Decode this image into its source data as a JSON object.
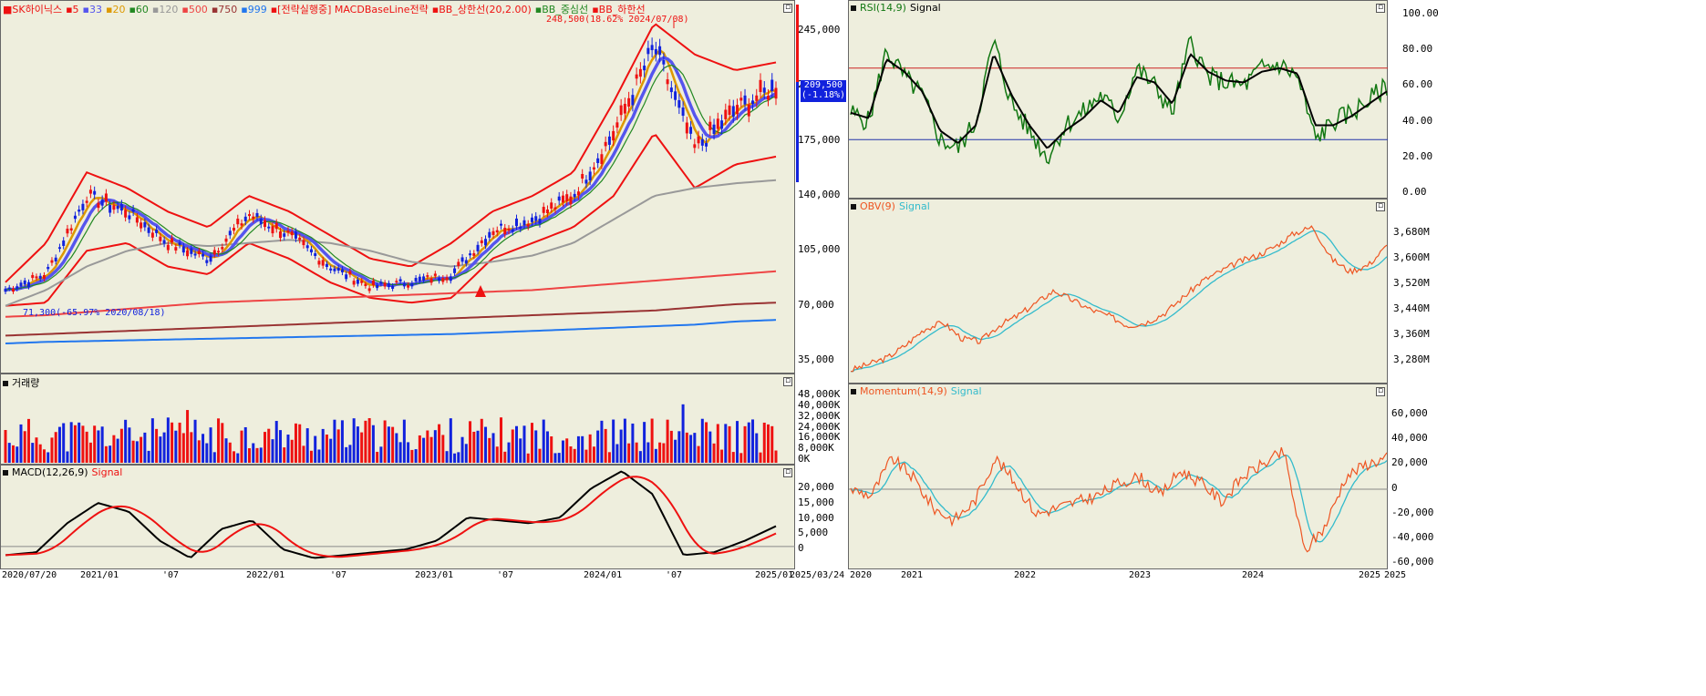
{
  "colors": {
    "bg": "#eeeedd",
    "up": "#ee1111",
    "down": "#1122dd",
    "ma5": "#ee1111",
    "ma20": "#dd9900",
    "ma33": "#5555ee",
    "ma60": "#228822",
    "ma120": "#999999",
    "ma500": "#ee4444",
    "ma750": "#993333",
    "ma999": "#2277ee",
    "bb": "#ee1111",
    "rsi": "#117711",
    "signal": "#000000",
    "obv": "#ee5522",
    "obv_signal": "#33bbcc",
    "macd": "#000000",
    "macd_signal": "#ee1111"
  },
  "price_panel": {
    "legend": [
      {
        "text": "SK하이닉스",
        "color": "#ee1111"
      },
      {
        "text": "5",
        "color": "#ee1111"
      },
      {
        "text": "33",
        "color": "#5555ee"
      },
      {
        "text": "20",
        "color": "#dd9900"
      },
      {
        "text": "60",
        "color": "#228822"
      },
      {
        "text": "120",
        "color": "#999999"
      },
      {
        "text": "500",
        "color": "#ee4444"
      },
      {
        "text": "750",
        "color": "#993333"
      },
      {
        "text": "999",
        "color": "#2277ee"
      },
      {
        "text": "[전략실행중] MACDBaseLine전략",
        "color": "#ee1111"
      },
      {
        "text": "BB_상한선(20,2.00)",
        "color": "#ee1111"
      },
      {
        "text": "BB_중심선",
        "color": "#228822"
      },
      {
        "text": "BB_하한선",
        "color": "#ee1111"
      }
    ],
    "high_annotation": "248,500(18.62% 2024/07/08)",
    "low_annotation": "71,300(-65.97% 2020/08/18)",
    "current_price": "209,500",
    "current_change": "(-1.18%)",
    "y_ticks": [
      "245,000",
      "210,000",
      "175,000",
      "140,000",
      "105,000",
      "70,000",
      "35,000"
    ]
  },
  "volume_panel": {
    "title": "거래량",
    "y_ticks": [
      "48,000K",
      "40,000K",
      "32,000K",
      "24,000K",
      "16,000K",
      "8,000K",
      "0K"
    ]
  },
  "macd_panel": {
    "title": "MACD(12,26,9)",
    "signal": "Signal",
    "y_ticks": [
      "20,000",
      "15,000",
      "10,000",
      "5,000",
      "0"
    ]
  },
  "x_axis_left": [
    "2020/07/20",
    "2021/01",
    "'07",
    "2022/01",
    "'07",
    "2023/01",
    "'07",
    "2024/01",
    "'07",
    "2025/01",
    "2025/03/24"
  ],
  "rsi_panel": {
    "title": "RSI(14,9)",
    "signal": "Signal",
    "y_ticks": [
      "100.00",
      "80.00",
      "60.00",
      "40.00",
      "20.00",
      "0.00"
    ]
  },
  "obv_panel": {
    "title": "OBV(9)",
    "signal": "Signal",
    "y_ticks": [
      "3,680M",
      "3,600M",
      "3,520M",
      "3,440M",
      "3,360M",
      "3,280M"
    ]
  },
  "momentum_panel": {
    "title": "Momentum(14,9)",
    "signal": "Signal",
    "y_ticks": [
      "60,000",
      "40,000",
      "20,000",
      "0",
      "-20,000",
      "-40,000",
      "-60,000"
    ]
  },
  "x_axis_right": [
    "2020",
    "2021",
    "2022",
    "2023",
    "2024",
    "2025",
    "2025"
  ],
  "chart_data": [
    {
      "type": "line",
      "name": "price",
      "x": [
        "2020/07",
        "2020/10",
        "2021/01",
        "2021/04",
        "2021/07",
        "2021/10",
        "2022/01",
        "2022/04",
        "2022/07",
        "2022/10",
        "2023/01",
        "2023/04",
        "2023/07",
        "2023/10",
        "2024/01",
        "2024/04",
        "2024/07",
        "2024/10",
        "2025/01",
        "2025/03"
      ],
      "series": [
        {
          "name": "SK하이닉스",
          "values": [
            80000,
            90000,
            140000,
            130000,
            110000,
            100000,
            128000,
            115000,
            95000,
            82000,
            85000,
            90000,
            118000,
            125000,
            140000,
            180000,
            235000,
            170000,
            195000,
            209500
          ]
        },
        {
          "name": "BB_상한선",
          "values": [
            85000,
            110000,
            155000,
            145000,
            130000,
            120000,
            140000,
            130000,
            115000,
            100000,
            95000,
            110000,
            130000,
            140000,
            155000,
            200000,
            250000,
            230000,
            220000,
            225000
          ]
        },
        {
          "name": "BB_하한선",
          "values": [
            70000,
            72000,
            105000,
            110000,
            95000,
            90000,
            110000,
            100000,
            85000,
            75000,
            72000,
            75000,
            100000,
            110000,
            120000,
            140000,
            180000,
            145000,
            160000,
            165000
          ]
        },
        {
          "name": "120",
          "values": [
            70000,
            80000,
            95000,
            105000,
            110000,
            108000,
            110000,
            112000,
            110000,
            105000,
            98000,
            95000,
            98000,
            102000,
            110000,
            125000,
            140000,
            145000,
            148000,
            150000
          ]
        },
        {
          "name": "500",
          "values": [
            63000,
            64000,
            66000,
            68000,
            70000,
            72000,
            73000,
            74000,
            75000,
            76000,
            77000,
            78000,
            79000,
            80000,
            82000,
            84000,
            86000,
            88000,
            90000,
            92000
          ]
        },
        {
          "name": "750",
          "values": [
            51000,
            52000,
            53000,
            54000,
            55000,
            56000,
            57000,
            58000,
            59000,
            60000,
            61000,
            62000,
            63000,
            64000,
            65000,
            66000,
            67000,
            69000,
            71000,
            72000
          ]
        },
        {
          "name": "999",
          "values": [
            46000,
            47000,
            47500,
            48000,
            48500,
            49000,
            49500,
            50000,
            50500,
            51000,
            51500,
            52000,
            53000,
            54000,
            55000,
            56000,
            57000,
            58000,
            60000,
            61000
          ]
        }
      ],
      "ylim": [
        20000,
        265000
      ]
    },
    {
      "type": "line",
      "name": "rsi",
      "series": [
        {
          "name": "RSI(14,9)",
          "values": [
            45,
            40,
            80,
            65,
            55,
            30,
            25,
            40,
            85,
            50,
            35,
            20,
            38,
            45,
            55,
            42,
            70,
            60,
            45,
            85,
            65,
            62,
            60,
            70,
            72,
            65,
            30,
            40,
            45,
            52,
            60
          ]
        },
        {
          "name": "Signal",
          "values": [
            45,
            42,
            75,
            68,
            57,
            35,
            28,
            38,
            78,
            55,
            38,
            25,
            35,
            42,
            52,
            45,
            65,
            62,
            50,
            78,
            68,
            63,
            62,
            68,
            70,
            67,
            38,
            38,
            43,
            50,
            57
          ]
        }
      ],
      "ylim": [
        0,
        100
      ],
      "hlines": [
        70,
        30
      ]
    }
  ]
}
